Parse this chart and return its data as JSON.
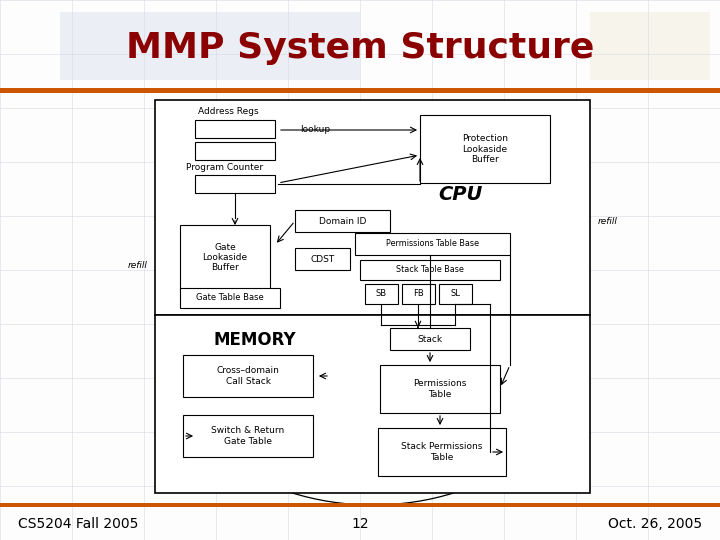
{
  "title": "MMP System Structure",
  "title_color": "#8B0000",
  "title_fontsize": 26,
  "orange_line_color": "#CC5500",
  "footer_left": "CS5204 Fall 2005",
  "footer_center": "12",
  "footer_right": "Oct. 26, 2005",
  "footer_fontsize": 10,
  "bg_color": "#F0F0F0",
  "slide_bg": "#FFFFFF",
  "grid_color": "#D0D4E0"
}
